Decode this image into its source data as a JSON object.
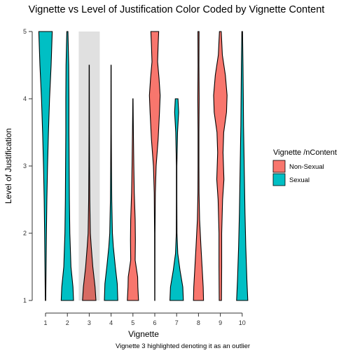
{
  "chart_data": {
    "type": "violin",
    "title": "Vignette vs Level of Justification Color Coded by Vignette Content",
    "xlabel": "Vignette",
    "ylabel": "Level of Justification",
    "caption": "Vignette 3 highlighted denoting it as an outlier",
    "x_ticks": [
      1,
      2,
      3,
      4,
      5,
      6,
      7,
      8,
      9,
      10
    ],
    "y_ticks": [
      1,
      2,
      3,
      4,
      5
    ],
    "ylim": [
      1,
      5
    ],
    "highlight_vignette": 3,
    "legend": {
      "title": "Vignette /nContent",
      "items": [
        {
          "label": "Non-Sexual",
          "color": "#F8766D"
        },
        {
          "label": "Sexual",
          "color": "#00BFC4"
        }
      ]
    },
    "colors": {
      "Non-Sexual": "#F8766D",
      "Sexual": "#00BFC4",
      "highlight": "#E0E0E0"
    },
    "vignettes": [
      {
        "vignette": 1,
        "content": "Sexual",
        "ymin": 1.0,
        "ymax": 5.0,
        "profile": [
          [
            1.0,
            0.02
          ],
          [
            1.5,
            0.05
          ],
          [
            2.0,
            0.08
          ],
          [
            2.5,
            0.12
          ],
          [
            3.0,
            0.18
          ],
          [
            3.5,
            0.26
          ],
          [
            4.0,
            0.36
          ],
          [
            4.5,
            0.5
          ],
          [
            5.0,
            0.6
          ]
        ]
      },
      {
        "vignette": 2,
        "content": "Sexual",
        "ymin": 1.0,
        "ymax": 5.0,
        "profile": [
          [
            1.0,
            0.55
          ],
          [
            1.2,
            0.5
          ],
          [
            1.5,
            0.32
          ],
          [
            2.0,
            0.22
          ],
          [
            2.5,
            0.18
          ],
          [
            3.0,
            0.16
          ],
          [
            3.5,
            0.14
          ],
          [
            4.0,
            0.14
          ],
          [
            4.5,
            0.12
          ],
          [
            5.0,
            0.05
          ]
        ]
      },
      {
        "vignette": 3,
        "content": "Non-Sexual",
        "ymin": 1.0,
        "ymax": 4.5,
        "profile": [
          [
            1.0,
            0.6
          ],
          [
            1.2,
            0.52
          ],
          [
            1.5,
            0.32
          ],
          [
            1.8,
            0.18
          ],
          [
            2.0,
            0.1
          ],
          [
            2.5,
            0.05
          ],
          [
            3.0,
            0.03
          ],
          [
            3.5,
            0.02
          ],
          [
            4.0,
            0.015
          ],
          [
            4.5,
            0.01
          ]
        ]
      },
      {
        "vignette": 4,
        "content": "Sexual",
        "ymin": 1.0,
        "ymax": 4.5,
        "profile": [
          [
            1.0,
            0.6
          ],
          [
            1.25,
            0.55
          ],
          [
            1.5,
            0.38
          ],
          [
            1.8,
            0.2
          ],
          [
            2.0,
            0.12
          ],
          [
            2.5,
            0.06
          ],
          [
            3.0,
            0.035
          ],
          [
            3.5,
            0.02
          ],
          [
            4.0,
            0.015
          ],
          [
            4.5,
            0.01
          ]
        ]
      },
      {
        "vignette": 5,
        "content": "Non-Sexual",
        "ymin": 1.0,
        "ymax": 4.0,
        "profile": [
          [
            1.0,
            0.5
          ],
          [
            1.2,
            0.44
          ],
          [
            1.35,
            0.42
          ],
          [
            1.6,
            0.2
          ],
          [
            1.9,
            0.22
          ],
          [
            2.2,
            0.2
          ],
          [
            2.6,
            0.12
          ],
          [
            3.0,
            0.08
          ],
          [
            3.5,
            0.04
          ],
          [
            4.0,
            0.01
          ]
        ]
      },
      {
        "vignette": 6,
        "content": "Non-Sexual",
        "ymin": 1.0,
        "ymax": 5.0,
        "profile": [
          [
            1.0,
            0.01
          ],
          [
            2.0,
            0.02
          ],
          [
            2.6,
            0.05
          ],
          [
            3.0,
            0.12
          ],
          [
            3.4,
            0.3
          ],
          [
            3.8,
            0.42
          ],
          [
            4.05,
            0.48
          ],
          [
            4.3,
            0.38
          ],
          [
            4.55,
            0.25
          ],
          [
            4.8,
            0.3
          ],
          [
            5.0,
            0.35
          ]
        ]
      },
      {
        "vignette": 7,
        "content": "Sexual",
        "ymin": 1.0,
        "ymax": 4.0,
        "profile": [
          [
            1.0,
            0.6
          ],
          [
            1.2,
            0.55
          ],
          [
            1.45,
            0.3
          ],
          [
            1.7,
            0.1
          ],
          [
            2.0,
            0.03
          ],
          [
            2.5,
            0.02
          ],
          [
            3.0,
            0.02
          ],
          [
            3.5,
            0.08
          ],
          [
            3.8,
            0.18
          ],
          [
            4.0,
            0.12
          ]
        ]
      },
      {
        "vignette": 8,
        "content": "Non-Sexual",
        "ymin": 1.0,
        "ymax": 5.0,
        "profile": [
          [
            1.0,
            0.45
          ],
          [
            1.2,
            0.42
          ],
          [
            1.5,
            0.32
          ],
          [
            1.8,
            0.22
          ],
          [
            2.2,
            0.1
          ],
          [
            2.6,
            0.05
          ],
          [
            3.0,
            0.04
          ],
          [
            3.5,
            0.04
          ],
          [
            4.0,
            0.06
          ],
          [
            4.5,
            0.04
          ],
          [
            5.0,
            0.05
          ]
        ]
      },
      {
        "vignette": 9,
        "content": "Non-Sexual",
        "ymin": 1.0,
        "ymax": 5.0,
        "profile": [
          [
            1.0,
            0.1
          ],
          [
            1.5,
            0.12
          ],
          [
            2.0,
            0.12
          ],
          [
            2.5,
            0.2
          ],
          [
            2.8,
            0.32
          ],
          [
            3.2,
            0.24
          ],
          [
            3.5,
            0.3
          ],
          [
            3.8,
            0.55
          ],
          [
            4.05,
            0.6
          ],
          [
            4.35,
            0.45
          ],
          [
            4.65,
            0.18
          ],
          [
            5.0,
            0.08
          ]
        ]
      },
      {
        "vignette": 10,
        "content": "Sexual",
        "ymin": 1.0,
        "ymax": 5.0,
        "profile": [
          [
            1.0,
            0.5
          ],
          [
            1.3,
            0.42
          ],
          [
            1.8,
            0.32
          ],
          [
            2.3,
            0.25
          ],
          [
            2.8,
            0.2
          ],
          [
            3.2,
            0.16
          ],
          [
            3.6,
            0.12
          ],
          [
            4.0,
            0.1
          ],
          [
            4.5,
            0.07
          ],
          [
            5.0,
            0.03
          ]
        ]
      }
    ]
  }
}
